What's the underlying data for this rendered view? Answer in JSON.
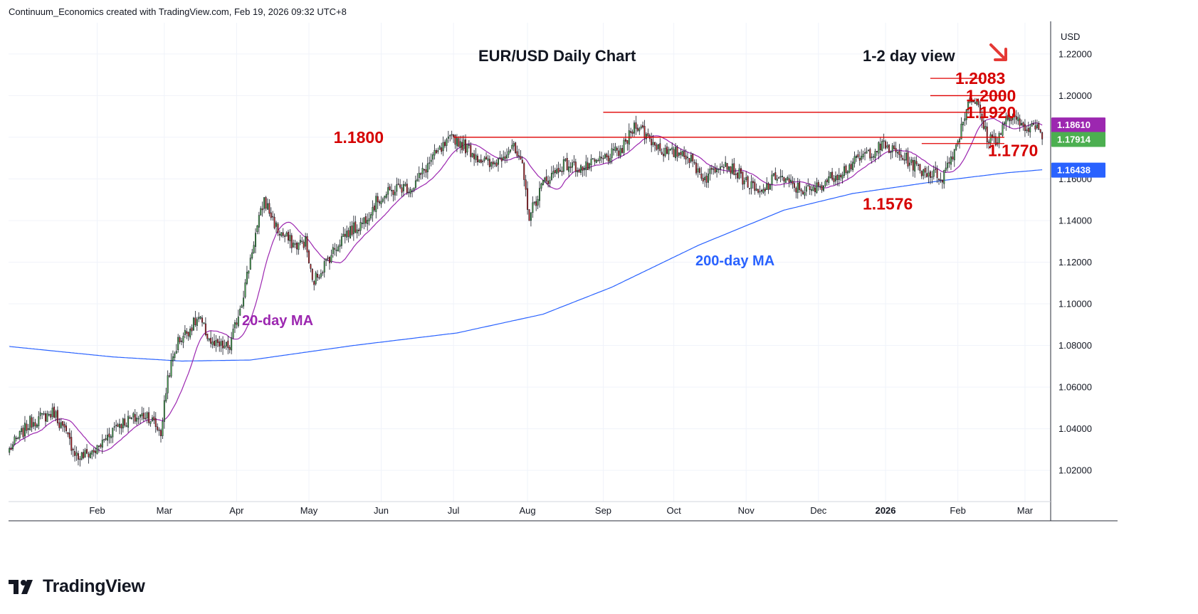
{
  "header": {
    "credit": "Continuum_Economics created with TradingView.com, Feb 19, 2026 09:32 UTC+8"
  },
  "brand": {
    "name": "TradingView",
    "icon": "tradingview-logo"
  },
  "colors": {
    "up_candle": "#4caf50",
    "down_candle": "#c62828",
    "wick": "#131722",
    "level_line": "#e00000",
    "level_text": "#d50000",
    "ma20": "#9c27b0",
    "ma200": "#2962ff",
    "grid": "#f0f3fa",
    "arrow": "#e53935",
    "price_badge_20ma": "#9c27b0",
    "price_badge_last": "#4caf50",
    "price_badge_200ma": "#2962ff"
  },
  "chart_data": {
    "type": "candlestick",
    "title": "EUR/USD Daily Chart",
    "subtitle": "1-2 day view",
    "currency": "USD",
    "ylim": [
      1.005,
      1.235
    ],
    "y_ticks": [
      "1.02000",
      "1.04000",
      "1.06000",
      "1.08000",
      "1.10000",
      "1.12000",
      "1.14000",
      "1.16000",
      "1.18000",
      "1.20000",
      "1.22000"
    ],
    "x_tick_labels": [
      "Feb",
      "Mar",
      "Apr",
      "May",
      "Jun",
      "Jul",
      "Aug",
      "Sep",
      "Oct",
      "Nov",
      "Dec",
      "2026",
      "Feb",
      "Mar"
    ],
    "x_tick_index": [
      51,
      90,
      132,
      174,
      216,
      258,
      301,
      345,
      386,
      428,
      470,
      509,
      551,
      590
    ],
    "price_badges": [
      {
        "label": "1.18610",
        "value": 1.1861,
        "series": "20-day MA"
      },
      {
        "label": "1.17914",
        "value": 1.17914,
        "series": "last"
      },
      {
        "label": "1.16438",
        "value": 1.16438,
        "series": "200-day MA"
      }
    ],
    "levels": [
      {
        "label": "1.2083",
        "value": 1.2083,
        "from": 535,
        "to": 565
      },
      {
        "label": "1.2000",
        "value": 1.2,
        "from": 535,
        "to": 578
      },
      {
        "label": "1.1920",
        "value": 1.192,
        "from": 345,
        "to": 578
      },
      {
        "label": "1.1800",
        "value": 1.18,
        "from": 258,
        "to": 578
      },
      {
        "label": "1.1770",
        "value": 1.177,
        "from": 530,
        "to": 578
      },
      {
        "label": "1.1576",
        "value": 1.1576,
        "from": null,
        "to": null
      }
    ],
    "annotations": {
      "ma20_label": "20-day MA",
      "ma200_label": "200-day MA"
    },
    "anchors": [
      [
        0,
        1.03
      ],
      [
        12,
        1.043
      ],
      [
        26,
        1.048
      ],
      [
        40,
        1.026
      ],
      [
        51,
        1.03
      ],
      [
        62,
        1.042
      ],
      [
        80,
        1.047
      ],
      [
        88,
        1.038
      ],
      [
        92,
        1.065
      ],
      [
        98,
        1.082
      ],
      [
        110,
        1.093
      ],
      [
        118,
        1.08
      ],
      [
        128,
        1.079
      ],
      [
        136,
        1.105
      ],
      [
        142,
        1.13
      ],
      [
        148,
        1.15
      ],
      [
        156,
        1.135
      ],
      [
        166,
        1.128
      ],
      [
        172,
        1.13
      ],
      [
        176,
        1.11
      ],
      [
        184,
        1.12
      ],
      [
        194,
        1.133
      ],
      [
        204,
        1.138
      ],
      [
        214,
        1.15
      ],
      [
        226,
        1.156
      ],
      [
        234,
        1.156
      ],
      [
        246,
        1.17
      ],
      [
        258,
        1.18
      ],
      [
        270,
        1.172
      ],
      [
        280,
        1.166
      ],
      [
        292,
        1.176
      ],
      [
        298,
        1.165
      ],
      [
        302,
        1.142
      ],
      [
        310,
        1.158
      ],
      [
        322,
        1.167
      ],
      [
        334,
        1.165
      ],
      [
        346,
        1.17
      ],
      [
        356,
        1.174
      ],
      [
        364,
        1.187
      ],
      [
        372,
        1.179
      ],
      [
        382,
        1.172
      ],
      [
        392,
        1.173
      ],
      [
        404,
        1.16
      ],
      [
        414,
        1.169
      ],
      [
        424,
        1.162
      ],
      [
        436,
        1.152
      ],
      [
        446,
        1.162
      ],
      [
        456,
        1.156
      ],
      [
        466,
        1.154
      ],
      [
        476,
        1.16
      ],
      [
        486,
        1.165
      ],
      [
        498,
        1.172
      ],
      [
        508,
        1.176
      ],
      [
        520,
        1.17
      ],
      [
        530,
        1.164
      ],
      [
        542,
        1.161
      ],
      [
        550,
        1.176
      ],
      [
        558,
        1.2
      ],
      [
        562,
        1.196
      ],
      [
        568,
        1.18
      ],
      [
        574,
        1.179
      ],
      [
        580,
        1.19
      ],
      [
        588,
        1.186
      ],
      [
        596,
        1.185
      ],
      [
        600,
        1.1791
      ]
    ],
    "n_bars": 601,
    "last_close": 1.17914
  }
}
